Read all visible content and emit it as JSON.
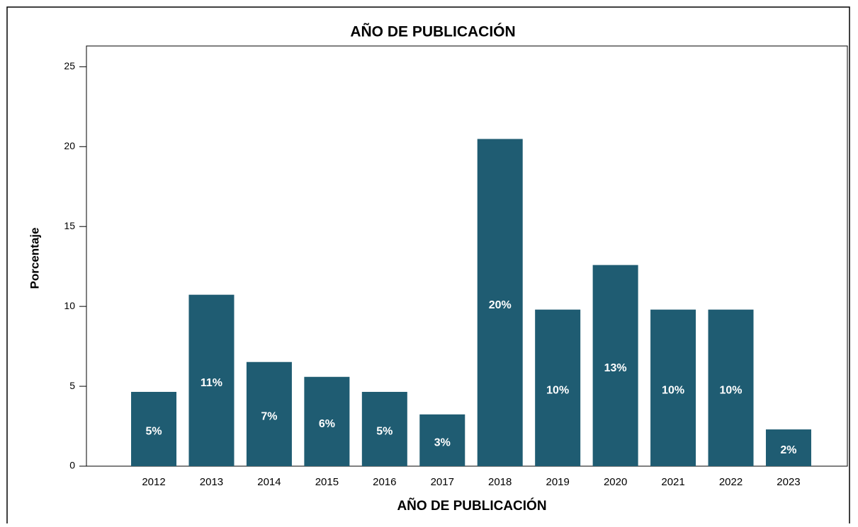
{
  "chart_data": {
    "type": "bar",
    "title": "AÑO DE PUBLICACIÓN",
    "x_label": "AÑO DE PUBLICACIÓN",
    "y_label": "Porcentaje",
    "categories": [
      "2012",
      "2013",
      "2014",
      "2015",
      "2016",
      "2017",
      "2018",
      "2019",
      "2020",
      "2021",
      "2022",
      "2023"
    ],
    "values": [
      4.65,
      10.73,
      6.52,
      5.59,
      4.65,
      3.24,
      20.48,
      9.8,
      12.59,
      9.8,
      9.8,
      2.3
    ],
    "value_labels": [
      "5%",
      "11%",
      "7%",
      "6%",
      "5%",
      "3%",
      "20%",
      "10%",
      "13%",
      "10%",
      "10%",
      "2%"
    ],
    "color": "#1f5c72",
    "ylim": [
      0,
      26.3
    ],
    "yticks": [
      0,
      5,
      10,
      15,
      20,
      25
    ],
    "grid": false
  }
}
